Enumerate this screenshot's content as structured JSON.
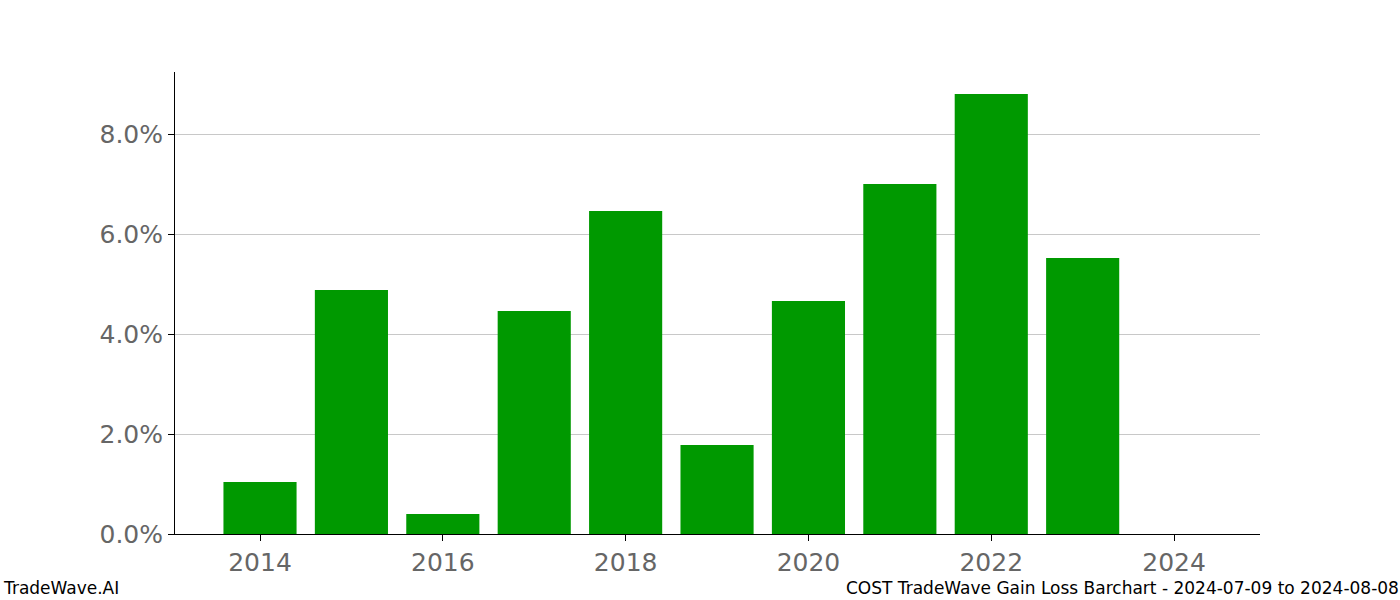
{
  "chart_data": {
    "type": "bar",
    "x": [
      2014,
      2015,
      2016,
      2017,
      2018,
      2019,
      2020,
      2021,
      2022,
      2023
    ],
    "values": [
      1.04,
      4.88,
      0.4,
      4.46,
      6.46,
      1.78,
      4.66,
      7.0,
      8.8,
      5.52
    ],
    "color": "#009900",
    "xlim": [
      2013.07,
      2024.94
    ],
    "xticks": [
      2014,
      2016,
      2018,
      2020,
      2022,
      2024
    ],
    "ylim": [
      0,
      9.24
    ],
    "yticks": [
      {
        "value": 0,
        "label": "0.0%"
      },
      {
        "value": 2,
        "label": "2.0%"
      },
      {
        "value": 4,
        "label": "4.0%"
      },
      {
        "value": 6,
        "label": "6.0%"
      },
      {
        "value": 8,
        "label": "8.0%"
      }
    ],
    "grid": true,
    "annotations": [
      "TradeWave.AI",
      "COST TradeWave Gain Loss Barchart - 2024-07-09 to 2024-08-08"
    ]
  }
}
